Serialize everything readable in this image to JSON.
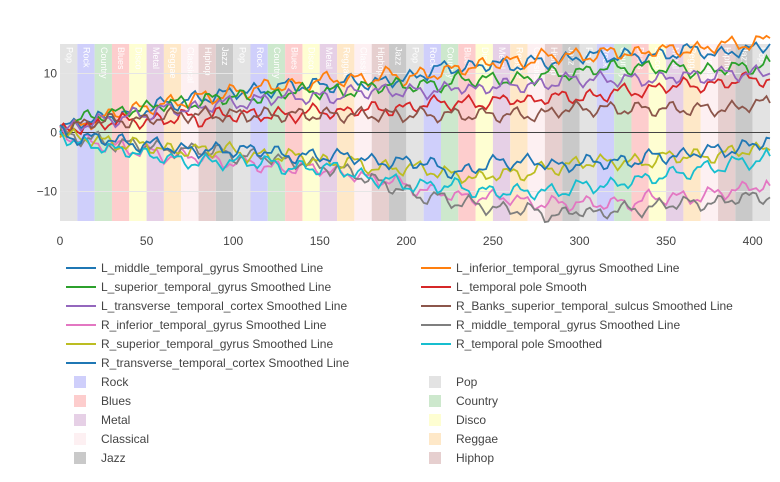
{
  "chart_data": {
    "type": "line",
    "title": "",
    "xlabel": "",
    "ylabel": "",
    "xlim": [
      0,
      410
    ],
    "ylim": [
      -15,
      15
    ],
    "x_ticks": [
      0,
      50,
      100,
      150,
      200,
      250,
      300,
      350,
      400
    ],
    "y_ticks": [
      -10,
      0,
      10
    ],
    "grid": true,
    "legend_position": "bottom",
    "genre_colors": {
      "Pop": "#e3e3e3",
      "Rock": "#cfcffb",
      "Country": "#cde8cd",
      "Blues": "#fdcdcd",
      "Disco": "#fefed2",
      "Metal": "#e6d0e6",
      "Reggae": "#fee8c8",
      "Classical": "#fdf0f2",
      "Hiphop": "#e6cfcf",
      "Jazz": "#c9c9c9"
    },
    "genre_blocks": [
      {
        "genre": "Pop",
        "start": 0,
        "end": 10
      },
      {
        "genre": "Rock",
        "start": 10,
        "end": 20
      },
      {
        "genre": "Country",
        "start": 20,
        "end": 30
      },
      {
        "genre": "Blues",
        "start": 30,
        "end": 40
      },
      {
        "genre": "Disco",
        "start": 40,
        "end": 50
      },
      {
        "genre": "Metal",
        "start": 50,
        "end": 60
      },
      {
        "genre": "Reggae",
        "start": 60,
        "end": 70
      },
      {
        "genre": "Classical",
        "start": 70,
        "end": 80
      },
      {
        "genre": "Hiphop",
        "start": 80,
        "end": 90
      },
      {
        "genre": "Jazz",
        "start": 90,
        "end": 100
      },
      {
        "genre": "Pop",
        "start": 100,
        "end": 110
      },
      {
        "genre": "Rock",
        "start": 110,
        "end": 120
      },
      {
        "genre": "Country",
        "start": 120,
        "end": 130
      },
      {
        "genre": "Blues",
        "start": 130,
        "end": 140
      },
      {
        "genre": "Disco",
        "start": 140,
        "end": 150
      },
      {
        "genre": "Metal",
        "start": 150,
        "end": 160
      },
      {
        "genre": "Reggae",
        "start": 160,
        "end": 170
      },
      {
        "genre": "Classical",
        "start": 170,
        "end": 180
      },
      {
        "genre": "Hiphop",
        "start": 180,
        "end": 190
      },
      {
        "genre": "Jazz",
        "start": 190,
        "end": 200
      },
      {
        "genre": "Pop",
        "start": 200,
        "end": 210
      },
      {
        "genre": "Rock",
        "start": 210,
        "end": 220
      },
      {
        "genre": "Country",
        "start": 220,
        "end": 230
      },
      {
        "genre": "Blues",
        "start": 230,
        "end": 240
      },
      {
        "genre": "Disco",
        "start": 240,
        "end": 250
      },
      {
        "genre": "Metal",
        "start": 250,
        "end": 260
      },
      {
        "genre": "Reggae",
        "start": 260,
        "end": 270
      },
      {
        "genre": "Classical",
        "start": 270,
        "end": 280
      },
      {
        "genre": "Hiphop",
        "start": 280,
        "end": 290
      },
      {
        "genre": "Jazz",
        "start": 290,
        "end": 300
      },
      {
        "genre": "Pop",
        "start": 300,
        "end": 310
      },
      {
        "genre": "Rock",
        "start": 310,
        "end": 320
      },
      {
        "genre": "Country",
        "start": 320,
        "end": 330
      },
      {
        "genre": "Blues",
        "start": 330,
        "end": 340
      },
      {
        "genre": "Disco",
        "start": 340,
        "end": 350
      },
      {
        "genre": "Metal",
        "start": 350,
        "end": 360
      },
      {
        "genre": "Reggae",
        "start": 360,
        "end": 370
      },
      {
        "genre": "Classical",
        "start": 370,
        "end": 380
      },
      {
        "genre": "Hiphop",
        "start": 380,
        "end": 390
      },
      {
        "genre": "Jazz",
        "start": 390,
        "end": 400
      },
      {
        "genre": "Pop",
        "start": 400,
        "end": 410
      }
    ],
    "series_x": [
      0,
      10,
      20,
      30,
      40,
      50,
      60,
      70,
      80,
      90,
      100,
      110,
      120,
      130,
      140,
      150,
      160,
      170,
      180,
      190,
      200,
      210,
      220,
      230,
      240,
      250,
      260,
      270,
      280,
      290,
      300,
      310,
      320,
      330,
      340,
      350,
      360,
      370,
      380,
      390,
      400,
      410
    ],
    "series": [
      {
        "name": "L_middle_temporal_gyrus Smoothed Line",
        "color": "#1f77b4",
        "values": [
          0,
          2,
          2,
          3,
          3,
          4,
          5,
          5,
          6,
          6,
          7,
          7,
          7,
          8,
          8,
          8,
          8,
          9,
          8,
          9,
          9,
          10,
          11,
          11,
          11,
          12,
          11,
          12,
          12,
          12,
          13,
          13,
          13,
          13,
          13,
          13,
          14,
          14,
          13,
          14,
          14,
          15
        ]
      },
      {
        "name": "L_inferior_temporal_gyrus Smoothed Line",
        "color": "#ff7f0e",
        "values": [
          0,
          1,
          2,
          3,
          4,
          4,
          5,
          5,
          6,
          6,
          7,
          7,
          8,
          8,
          8,
          9,
          9,
          9,
          9,
          10,
          9,
          10,
          10,
          11,
          11,
          12,
          12,
          12,
          13,
          13,
          13,
          13,
          14,
          13,
          14,
          14,
          14,
          14,
          15,
          15,
          15,
          16
        ]
      },
      {
        "name": "L_superior_temporal_gyrus Smoothed Line",
        "color": "#2ca02c",
        "values": [
          0,
          2,
          3,
          3,
          4,
          4,
          5,
          5,
          5,
          6,
          6,
          6,
          6,
          7,
          7,
          7,
          7,
          7,
          8,
          8,
          8,
          8,
          8,
          9,
          9,
          9,
          9,
          9,
          10,
          10,
          10,
          11,
          11,
          11,
          11,
          11,
          11,
          10,
          11,
          11,
          11,
          12
        ]
      },
      {
        "name": "L_temporal pole Smooth",
        "color": "#d62728",
        "values": [
          0,
          1,
          1,
          2,
          2,
          2,
          2,
          3,
          2,
          3,
          3,
          3,
          3,
          3,
          3,
          4,
          3,
          4,
          4,
          4,
          4,
          5,
          5,
          5,
          5,
          5,
          6,
          5,
          6,
          6,
          6,
          6,
          7,
          7,
          7,
          8,
          8,
          8,
          8,
          9,
          9,
          9
        ]
      },
      {
        "name": "L_transverse_temporal_cortex Smoothed Line",
        "color": "#9467bd",
        "values": [
          0,
          1,
          2,
          2,
          3,
          3,
          4,
          4,
          4,
          5,
          5,
          5,
          6,
          6,
          6,
          6,
          6,
          7,
          7,
          7,
          7,
          7,
          7,
          8,
          7,
          8,
          8,
          8,
          8,
          9,
          9,
          9,
          9,
          9,
          9,
          9,
          10,
          9,
          10,
          10,
          10,
          10
        ]
      },
      {
        "name": "R_Banks_superior_temporal_sulcus Smoothed Line",
        "color": "#8c564b",
        "values": [
          0,
          1,
          2,
          2,
          2,
          2,
          3,
          3,
          3,
          3,
          3,
          3,
          3,
          3,
          3,
          3,
          3,
          3,
          3,
          3,
          3,
          3,
          3,
          3,
          3,
          3,
          3,
          3,
          3,
          4,
          4,
          4,
          4,
          4,
          4,
          4,
          4,
          4,
          4,
          4,
          5,
          5
        ]
      },
      {
        "name": "R_inferior_temporal_gyrus Smoothed Line",
        "color": "#e377c2",
        "values": [
          0,
          -1,
          -2,
          -2,
          -3,
          -3,
          -4,
          -4,
          -4,
          -5,
          -5,
          -5,
          -6,
          -6,
          -6,
          -6,
          -7,
          -7,
          -8,
          -8,
          -9,
          -10,
          -10,
          -11,
          -11,
          -11,
          -11,
          -12,
          -12,
          -12,
          -12,
          -12,
          -12,
          -12,
          -11,
          -11,
          -11,
          -11,
          -10,
          -10,
          -9,
          -9
        ]
      },
      {
        "name": "R_middle_temporal_gyrus Smoothed Line",
        "color": "#7f7f7f",
        "values": [
          0,
          -1,
          -1,
          -2,
          -2,
          -2,
          -3,
          -3,
          -3,
          -3,
          -4,
          -4,
          -4,
          -5,
          -5,
          -6,
          -6,
          -7,
          -8,
          -9,
          -10,
          -11,
          -11,
          -12,
          -12,
          -13,
          -13,
          -13,
          -14,
          -14,
          -13,
          -14,
          -13,
          -13,
          -13,
          -12,
          -12,
          -12,
          -12,
          -11,
          -11,
          -11
        ]
      },
      {
        "name": "R_superior_temporal_gyrus Smoothed Line",
        "color": "#bcbd22",
        "values": [
          0,
          -1,
          -1,
          -2,
          -2,
          -2,
          -3,
          -3,
          -3,
          -3,
          -3,
          -4,
          -4,
          -4,
          -4,
          -5,
          -5,
          -5,
          -6,
          -6,
          -6,
          -6,
          -7,
          -7,
          -8,
          -7,
          -7,
          -7,
          -6,
          -6,
          -5,
          -5,
          -5,
          -5,
          -5,
          -4,
          -4,
          -4,
          -4,
          -3,
          -3,
          -3
        ]
      },
      {
        "name": "R_temporal pole Smoothed",
        "color": "#17becf",
        "values": [
          0,
          -2,
          -2,
          -3,
          -3,
          -4,
          -4,
          -5,
          -5,
          -5,
          -5,
          -5,
          -5,
          -6,
          -6,
          -6,
          -6,
          -7,
          -8,
          -8,
          -9,
          -9,
          -9,
          -9,
          -10,
          -10,
          -10,
          -10,
          -10,
          -10,
          -9,
          -9,
          -9,
          -8,
          -8,
          -7,
          -7,
          -6,
          -6,
          -5,
          -5,
          -4
        ]
      },
      {
        "name": "R_transverse_temporal_cortex Smoothed Line",
        "color": "#1f77b4",
        "values": [
          0,
          -1,
          -1,
          -1,
          -2,
          -2,
          -2,
          -3,
          -3,
          -3,
          -3,
          -3,
          -3,
          -4,
          -4,
          -4,
          -4,
          -4,
          -5,
          -5,
          -5,
          -5,
          -6,
          -7,
          -6,
          -5,
          -5,
          -5,
          -5,
          -6,
          -5,
          -5,
          -5,
          -5,
          -4,
          -4,
          -4,
          -3,
          -3,
          -3,
          -2,
          -1
        ]
      }
    ]
  }
}
